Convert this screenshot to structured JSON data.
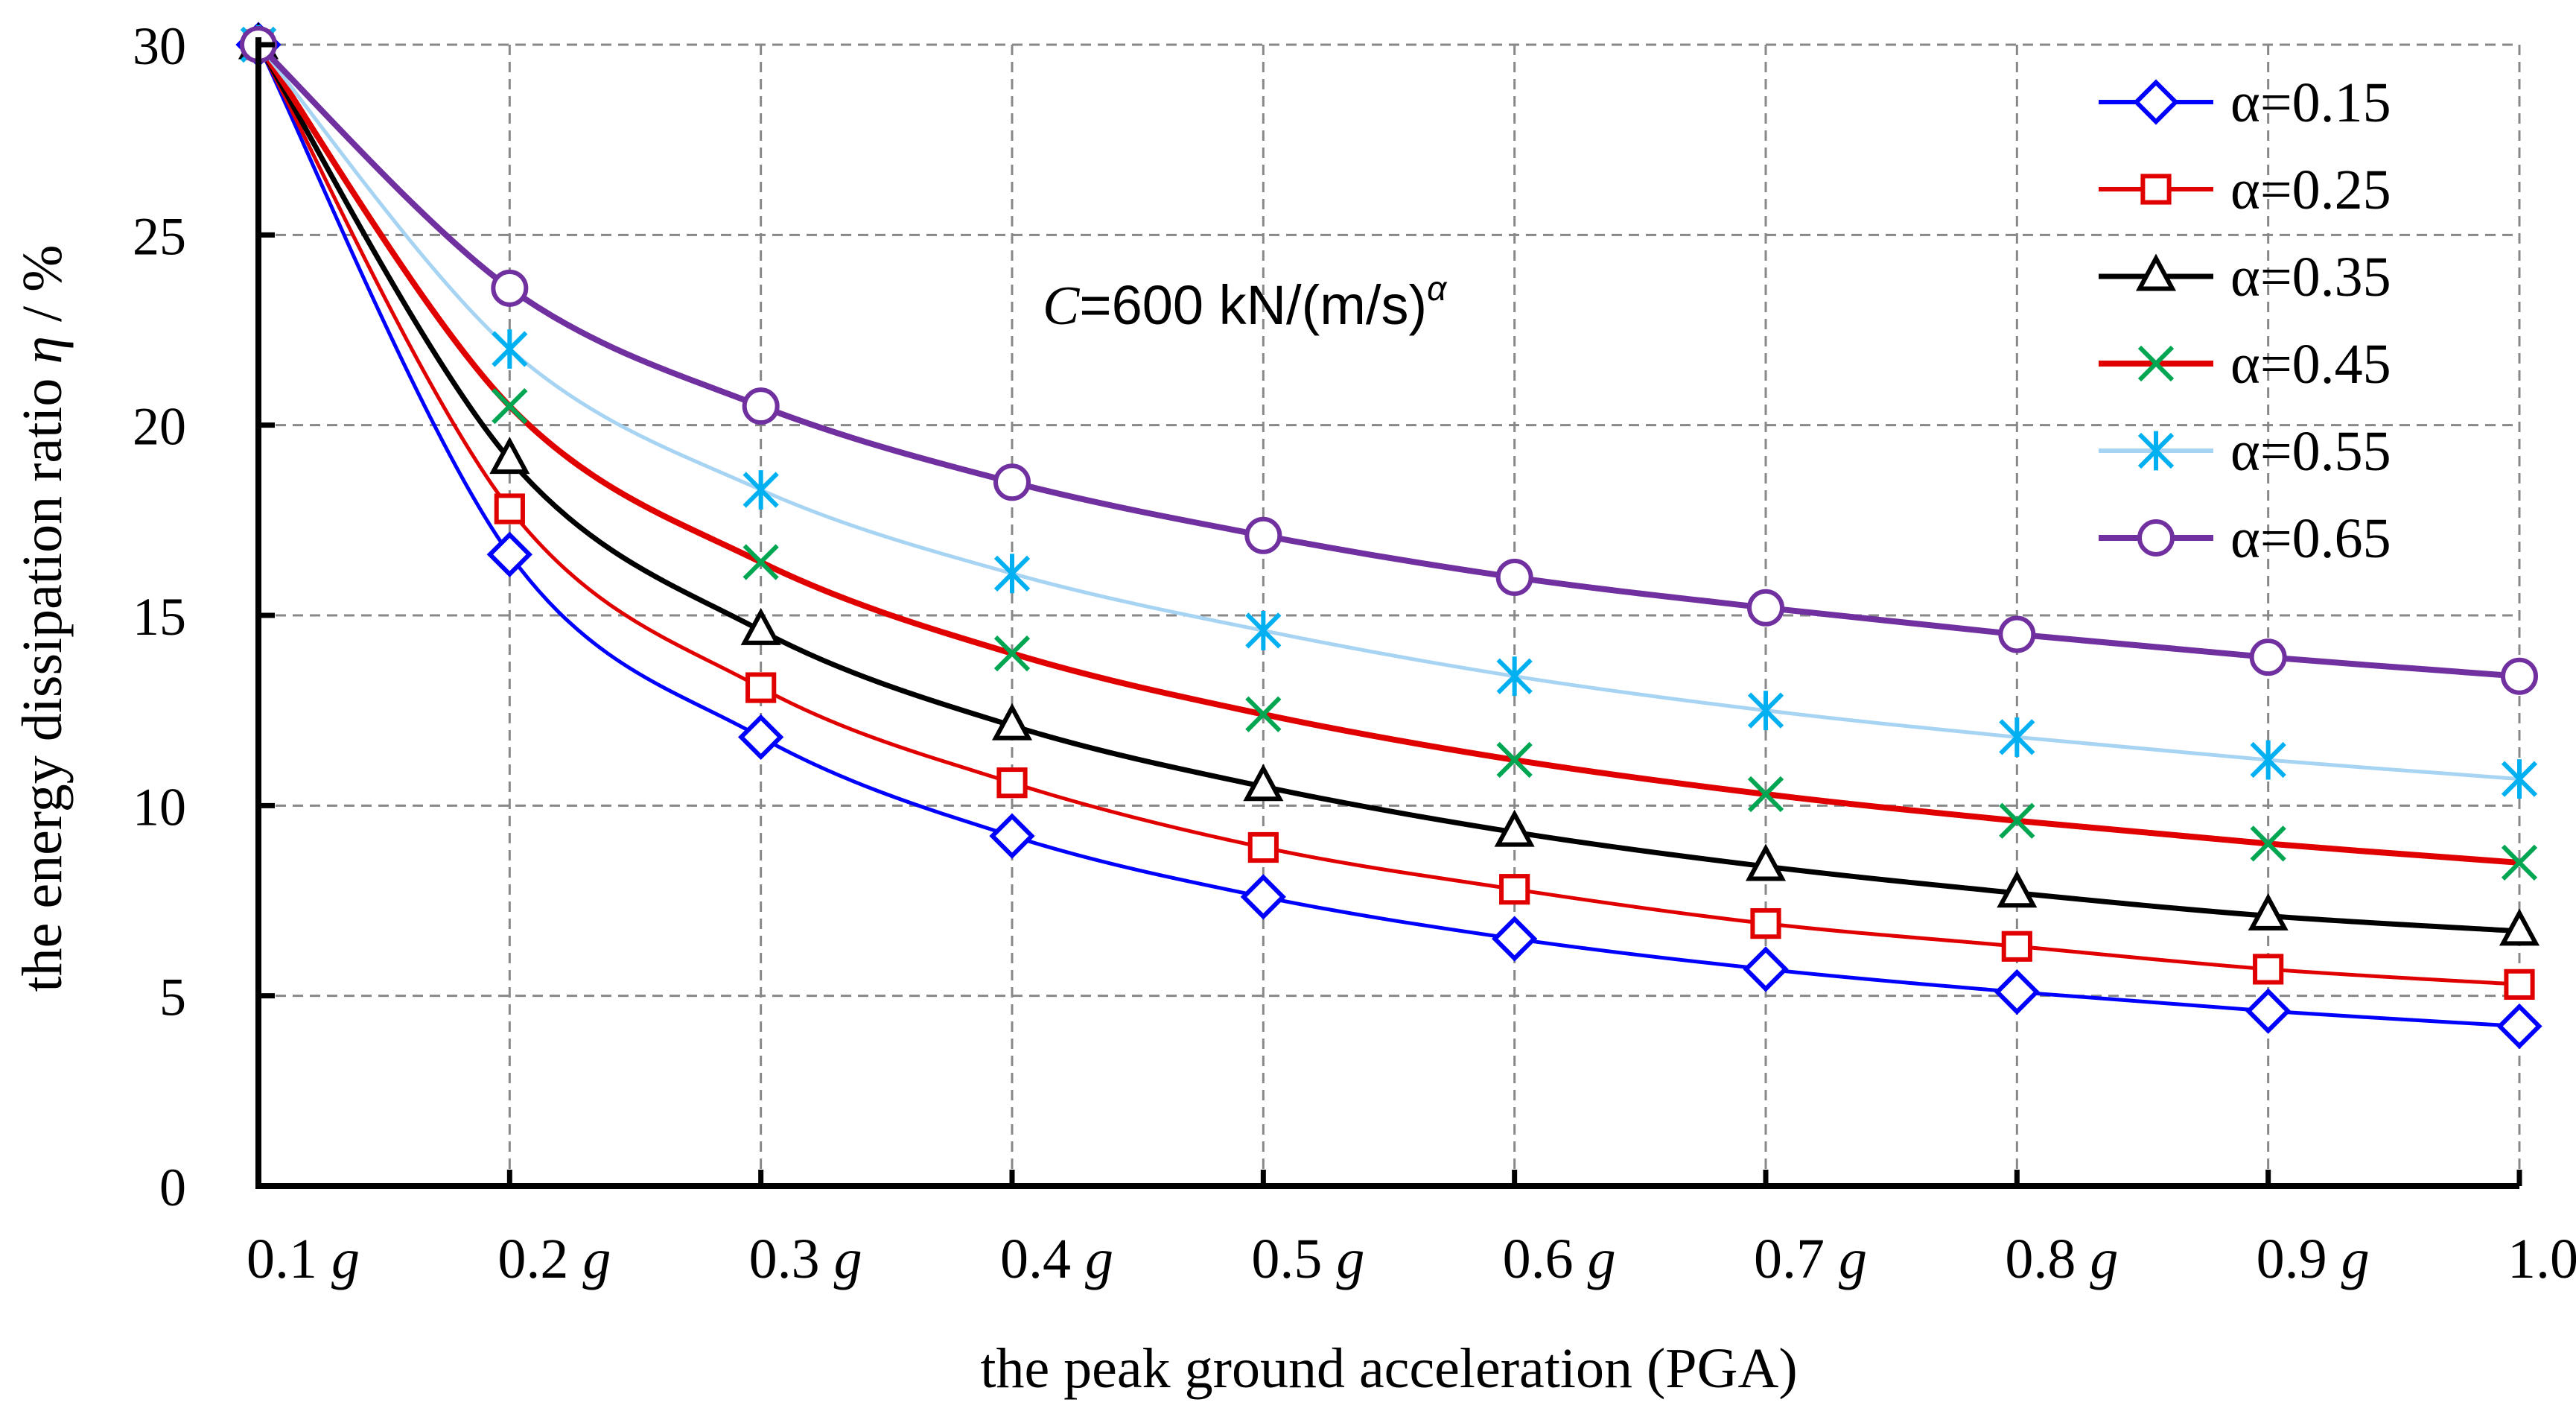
{
  "chart_data": {
    "type": "line",
    "title": "",
    "annotation": {
      "prefix": "C",
      "text": "=600 kN/(m/s)",
      "superscript": "α"
    },
    "xlabel": "the peak ground acceleration (PGA)",
    "ylabel": {
      "text": "the energy dissipation ratio ",
      "symbol": "η",
      "unit": " / %"
    },
    "x": [
      0.1,
      0.2,
      0.3,
      0.4,
      0.5,
      0.6,
      0.7,
      0.8,
      0.9,
      1.0
    ],
    "x_tick_labels": [
      "0.1",
      "0.2",
      "0.3",
      "0.4",
      "0.5",
      "0.6",
      "0.7",
      "0.8",
      "0.9",
      "1.0"
    ],
    "x_tick_unit": "g",
    "y_ticks": [
      0,
      5,
      10,
      15,
      20,
      25,
      30
    ],
    "ylim": [
      0,
      30
    ],
    "xlim": [
      0.1,
      1.0
    ],
    "grid": true,
    "legend_position": "top-right",
    "series": [
      {
        "name": "α=0.15",
        "color": "#0000ff",
        "marker": "diamond",
        "values": [
          30,
          16.6,
          11.8,
          9.2,
          7.6,
          6.5,
          5.7,
          5.1,
          4.6,
          4.2
        ]
      },
      {
        "name": "α=0.25",
        "color": "#e00000",
        "marker": "square",
        "values": [
          30,
          17.8,
          13.1,
          10.6,
          8.9,
          7.8,
          6.9,
          6.3,
          5.7,
          5.3
        ]
      },
      {
        "name": "α=0.35",
        "color": "#000000",
        "marker": "triangle",
        "values": [
          30,
          19.1,
          14.6,
          12.1,
          10.5,
          9.3,
          8.4,
          7.7,
          7.1,
          6.7
        ]
      },
      {
        "name": "α=0.45",
        "color": "#e00000",
        "marker_color": "#00a651",
        "marker": "x",
        "values": [
          30,
          20.5,
          16.4,
          14.0,
          12.4,
          11.2,
          10.3,
          9.6,
          9.0,
          8.5
        ]
      },
      {
        "name": "α=0.55",
        "color": "#a6d4f2",
        "marker_color": "#00b0f0",
        "marker": "asterisk",
        "values": [
          30,
          22.0,
          18.3,
          16.1,
          14.6,
          13.4,
          12.5,
          11.8,
          11.2,
          10.7
        ]
      },
      {
        "name": "α=0.65",
        "color": "#7030a0",
        "marker": "circle",
        "values": [
          30,
          23.6,
          20.5,
          18.5,
          17.1,
          16.0,
          15.2,
          14.5,
          13.9,
          13.4
        ]
      }
    ]
  }
}
